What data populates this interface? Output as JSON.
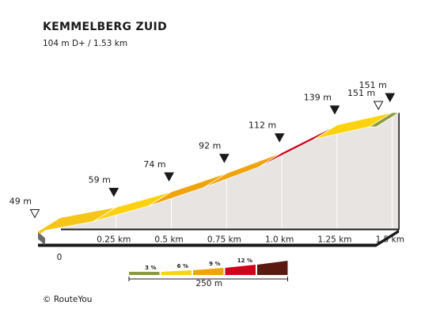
{
  "header": {
    "title": "KEMMELBERG ZUID",
    "subtitle": "104 m D+ / 1.53 km"
  },
  "footer": {
    "credit": "© RouteYou"
  },
  "chart_data": {
    "type": "area",
    "title": "KEMMELBERG ZUID",
    "subtitle": "104 m D+ / 1.53 km",
    "x_unit": "km",
    "y_unit": "m",
    "xlim": [
      0,
      1.53
    ],
    "x_ticks": [
      {
        "value": 0,
        "label": "0"
      },
      {
        "value": 0.25,
        "label": "0.25 km"
      },
      {
        "value": 0.5,
        "label": "0.5 km"
      },
      {
        "value": 0.75,
        "label": "0.75 km"
      },
      {
        "value": 1.0,
        "label": "1.0 km"
      },
      {
        "value": 1.25,
        "label": "1.25 km"
      },
      {
        "value": 1.5,
        "label": "1.5 km"
      }
    ],
    "elevation_points": [
      {
        "x": 0,
        "y": 49,
        "label": "49 m",
        "marker": "start"
      },
      {
        "x": 0.25,
        "y": 59,
        "label": "59 m",
        "marker": "point"
      },
      {
        "x": 0.5,
        "y": 74,
        "label": "74 m",
        "marker": "point"
      },
      {
        "x": 0.75,
        "y": 92,
        "label": "92 m",
        "marker": "point"
      },
      {
        "x": 1.0,
        "y": 112,
        "label": "112 m",
        "marker": "point"
      },
      {
        "x": 1.25,
        "y": 139,
        "label": "139 m",
        "marker": "point"
      },
      {
        "x": 1.5,
        "y": 151,
        "label": "151 m",
        "marker": "point"
      },
      {
        "x": 1.53,
        "y": 151,
        "label": "151 m",
        "marker": "end"
      }
    ],
    "segments": [
      {
        "x0": 0,
        "x1": 0.25,
        "color": "#f5c518"
      },
      {
        "x0": 0.25,
        "x1": 0.5,
        "color": "#fcd20e"
      },
      {
        "x0": 0.5,
        "x1": 0.75,
        "color": "#f0a30a"
      },
      {
        "x0": 0.75,
        "x1": 1.0,
        "color": "#f0a30a"
      },
      {
        "x0": 1.0,
        "x1": 1.25,
        "color": "#d0021b"
      },
      {
        "x0": 1.25,
        "x1": 1.5,
        "color": "#fcd20e"
      },
      {
        "x0": 1.5,
        "x1": 1.53,
        "color": "#8a9a3a"
      }
    ],
    "legend": {
      "items": [
        {
          "label": "3 %",
          "color": "#8a9a3a"
        },
        {
          "label": "6 %",
          "color": "#fcd20e"
        },
        {
          "label": "9 %",
          "color": "#f0a30a"
        },
        {
          "label": "12 %",
          "color": "#d0021b"
        },
        {
          "label": "",
          "color": "#5b1a10"
        }
      ],
      "scale_label": "250 m"
    },
    "colors": {
      "wall": "#e8e4e1",
      "side": "#6a6a6a",
      "outline": "#1a1a1a",
      "marker": "#1a1a1a"
    }
  }
}
